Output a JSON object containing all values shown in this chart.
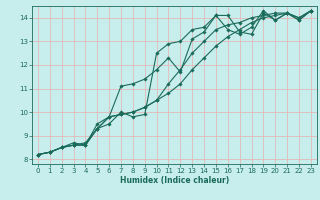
{
  "title": "",
  "xlabel": "Humidex (Indice chaleur)",
  "xlim": [
    -0.5,
    23.5
  ],
  "ylim": [
    7.8,
    14.5
  ],
  "xticks": [
    0,
    1,
    2,
    3,
    4,
    5,
    6,
    7,
    8,
    9,
    10,
    11,
    12,
    13,
    14,
    15,
    16,
    17,
    18,
    19,
    20,
    21,
    22,
    23
  ],
  "yticks": [
    8,
    9,
    10,
    11,
    12,
    13,
    14
  ],
  "bg_color": "#c8eded",
  "grid_color": "#e8b0b0",
  "line_color": "#1a6b5a",
  "lines": [
    {
      "x": [
        0,
        1,
        2,
        3,
        4,
        5,
        6,
        7,
        8,
        9,
        10,
        11,
        12,
        13,
        14,
        15,
        16,
        17,
        18,
        19,
        20,
        21,
        22,
        23
      ],
      "y": [
        8.2,
        8.3,
        8.5,
        8.6,
        8.7,
        9.3,
        9.5,
        10.0,
        9.8,
        9.9,
        12.5,
        12.9,
        13.0,
        13.5,
        13.6,
        14.1,
        14.1,
        13.4,
        13.3,
        14.2,
        13.9,
        14.2,
        13.9,
        14.3
      ]
    },
    {
      "x": [
        0,
        1,
        2,
        3,
        4,
        5,
        6,
        7,
        8,
        9,
        10,
        11,
        12,
        13,
        14,
        15,
        16,
        17,
        18,
        19,
        20,
        21,
        22,
        23
      ],
      "y": [
        8.2,
        8.3,
        8.5,
        8.7,
        8.6,
        9.5,
        9.8,
        11.1,
        11.2,
        11.4,
        11.8,
        12.3,
        11.7,
        13.1,
        13.4,
        14.1,
        13.5,
        13.3,
        13.6,
        14.3,
        13.9,
        14.2,
        13.9,
        14.3
      ]
    },
    {
      "x": [
        0,
        1,
        2,
        3,
        4,
        5,
        6,
        7,
        8,
        9,
        10,
        11,
        12,
        13,
        14,
        15,
        16,
        17,
        18,
        19,
        20,
        21,
        22,
        23
      ],
      "y": [
        8.2,
        8.3,
        8.5,
        8.6,
        8.6,
        9.3,
        9.8,
        9.9,
        10.0,
        10.2,
        10.5,
        10.8,
        11.2,
        11.8,
        12.3,
        12.8,
        13.2,
        13.5,
        13.8,
        14.0,
        14.1,
        14.2,
        14.0,
        14.3
      ]
    },
    {
      "x": [
        0,
        1,
        2,
        3,
        4,
        5,
        6,
        7,
        8,
        9,
        10,
        11,
        12,
        13,
        14,
        15,
        16,
        17,
        18,
        19,
        20,
        21,
        22,
        23
      ],
      "y": [
        8.2,
        8.3,
        8.5,
        8.6,
        8.6,
        9.3,
        9.8,
        9.9,
        10.0,
        10.2,
        10.5,
        11.2,
        11.8,
        12.5,
        13.0,
        13.5,
        13.7,
        13.8,
        14.0,
        14.1,
        14.2,
        14.2,
        14.0,
        14.3
      ]
    }
  ]
}
